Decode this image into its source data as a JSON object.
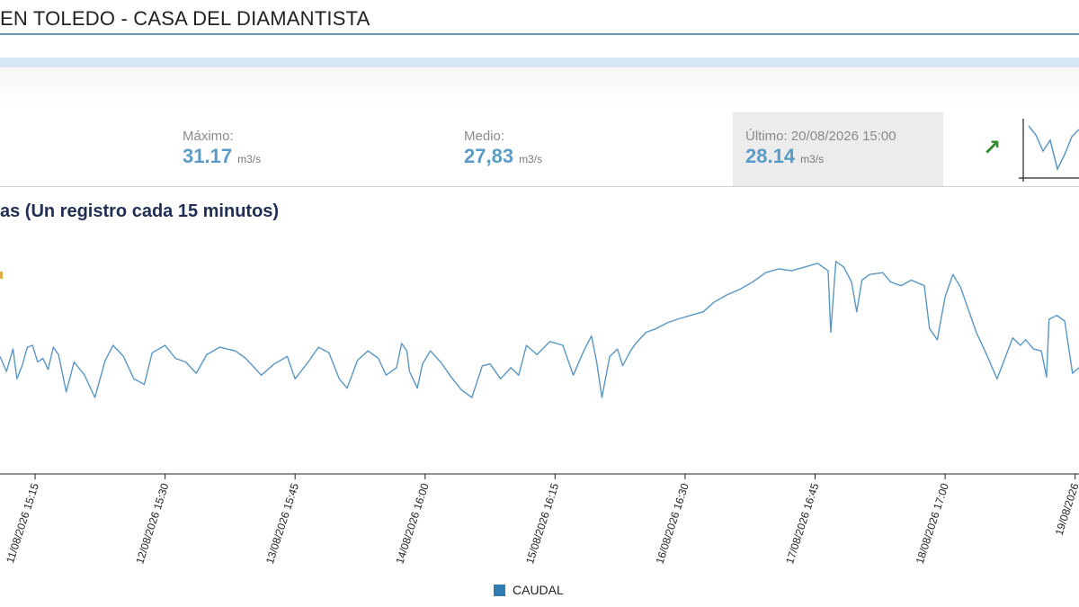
{
  "header": {
    "title": "EN TOLEDO - CASA DEL DIAMANTISTA"
  },
  "stats": {
    "max": {
      "label": "Máximo:",
      "value": "31.17",
      "unit": "m3/s"
    },
    "mean": {
      "label": "Medio:",
      "value": "27,83",
      "unit": "m3/s"
    },
    "last": {
      "label": "Último: 20/08/2026 15:00",
      "value": "28.14",
      "unit": "m3/s"
    },
    "trend_icon": "arrow-up-right-icon"
  },
  "colors": {
    "series": "#5b96c2",
    "value_text": "#5a9cc7",
    "legend": "#2f7cb0",
    "trend": "#2e8a2e"
  },
  "chart_data": {
    "type": "line",
    "title": "as (Un registro cada 15 minutos)",
    "xlabel": "",
    "ylabel": "",
    "x_tick_labels": [
      "11/08/2026 15:15",
      "12/08/2026 15:30",
      "13/08/2026 15:45",
      "14/08/2026 16:00",
      "15/08/2026 16:15",
      "16/08/2026 16:30",
      "17/08/2026 16:45",
      "18/08/2026 17:00",
      "19/08/2026"
    ],
    "x_tick_positions": [
      0,
      1,
      2,
      3,
      4,
      5,
      6,
      7,
      8
    ],
    "xlim": [
      -0.27,
      8.03
    ],
    "ylim": [
      25.4,
      31.6
    ],
    "grid": false,
    "legend": "bottom-center",
    "series": [
      {
        "name": "CAUDAL",
        "points": [
          [
            -0.27,
            28.55
          ],
          [
            -0.22,
            28.15
          ],
          [
            -0.17,
            28.75
          ],
          [
            -0.14,
            27.95
          ],
          [
            -0.1,
            28.3
          ],
          [
            -0.06,
            28.8
          ],
          [
            -0.02,
            28.85
          ],
          [
            0.02,
            28.4
          ],
          [
            0.06,
            28.5
          ],
          [
            0.1,
            28.2
          ],
          [
            0.14,
            28.8
          ],
          [
            0.18,
            28.6
          ],
          [
            0.24,
            27.6
          ],
          [
            0.3,
            28.4
          ],
          [
            0.38,
            28.05
          ],
          [
            0.46,
            27.45
          ],
          [
            0.54,
            28.45
          ],
          [
            0.6,
            28.85
          ],
          [
            0.68,
            28.55
          ],
          [
            0.76,
            27.95
          ],
          [
            0.84,
            27.8
          ],
          [
            0.9,
            28.65
          ],
          [
            1.0,
            28.85
          ],
          [
            1.08,
            28.5
          ],
          [
            1.16,
            28.4
          ],
          [
            1.24,
            28.1
          ],
          [
            1.32,
            28.6
          ],
          [
            1.42,
            28.8
          ],
          [
            1.54,
            28.7
          ],
          [
            1.62,
            28.5
          ],
          [
            1.74,
            28.05
          ],
          [
            1.84,
            28.35
          ],
          [
            1.94,
            28.55
          ],
          [
            2.0,
            27.95
          ],
          [
            2.1,
            28.4
          ],
          [
            2.18,
            28.8
          ],
          [
            2.26,
            28.65
          ],
          [
            2.34,
            27.95
          ],
          [
            2.4,
            27.7
          ],
          [
            2.48,
            28.45
          ],
          [
            2.56,
            28.7
          ],
          [
            2.64,
            28.5
          ],
          [
            2.7,
            28.05
          ],
          [
            2.78,
            28.25
          ],
          [
            2.82,
            28.9
          ],
          [
            2.86,
            28.7
          ],
          [
            2.88,
            28.15
          ],
          [
            2.94,
            27.7
          ],
          [
            2.98,
            28.35
          ],
          [
            3.04,
            28.7
          ],
          [
            3.12,
            28.4
          ],
          [
            3.2,
            28.0
          ],
          [
            3.28,
            27.65
          ],
          [
            3.36,
            27.45
          ],
          [
            3.44,
            28.3
          ],
          [
            3.5,
            28.35
          ],
          [
            3.58,
            27.95
          ],
          [
            3.66,
            28.25
          ],
          [
            3.72,
            28.05
          ],
          [
            3.78,
            28.85
          ],
          [
            3.86,
            28.6
          ],
          [
            3.96,
            28.95
          ],
          [
            4.06,
            28.85
          ],
          [
            4.14,
            28.05
          ],
          [
            4.22,
            28.7
          ],
          [
            4.28,
            29.1
          ],
          [
            4.32,
            28.4
          ],
          [
            4.36,
            27.45
          ],
          [
            4.42,
            28.55
          ],
          [
            4.48,
            28.75
          ],
          [
            4.52,
            28.3
          ],
          [
            4.58,
            28.7
          ],
          [
            4.62,
            28.9
          ],
          [
            4.7,
            29.2
          ],
          [
            4.78,
            29.3
          ],
          [
            4.86,
            29.45
          ],
          [
            4.94,
            29.55
          ],
          [
            5.04,
            29.65
          ],
          [
            5.14,
            29.75
          ],
          [
            5.22,
            30.0
          ],
          [
            5.32,
            30.2
          ],
          [
            5.42,
            30.35
          ],
          [
            5.52,
            30.55
          ],
          [
            5.62,
            30.8
          ],
          [
            5.72,
            30.9
          ],
          [
            5.82,
            30.85
          ],
          [
            5.92,
            30.95
          ],
          [
            6.02,
            31.05
          ],
          [
            6.1,
            30.85
          ],
          [
            6.12,
            29.2
          ],
          [
            6.16,
            31.1
          ],
          [
            6.22,
            30.95
          ],
          [
            6.28,
            30.55
          ],
          [
            6.32,
            29.75
          ],
          [
            6.36,
            30.6
          ],
          [
            6.42,
            30.75
          ],
          [
            6.52,
            30.8
          ],
          [
            6.58,
            30.55
          ],
          [
            6.66,
            30.45
          ],
          [
            6.74,
            30.6
          ],
          [
            6.84,
            30.45
          ],
          [
            6.88,
            29.3
          ],
          [
            6.94,
            29.0
          ],
          [
            7.0,
            30.15
          ],
          [
            7.06,
            30.75
          ],
          [
            7.12,
            30.4
          ],
          [
            7.18,
            29.8
          ],
          [
            7.24,
            29.2
          ],
          [
            7.32,
            28.6
          ],
          [
            7.4,
            27.95
          ],
          [
            7.46,
            28.5
          ],
          [
            7.52,
            29.05
          ],
          [
            7.58,
            28.85
          ],
          [
            7.62,
            29.0
          ],
          [
            7.68,
            28.75
          ],
          [
            7.74,
            28.7
          ],
          [
            7.78,
            28.0
          ],
          [
            7.8,
            29.55
          ],
          [
            7.86,
            29.65
          ],
          [
            7.92,
            29.5
          ],
          [
            7.98,
            28.1
          ],
          [
            8.03,
            28.25
          ]
        ]
      }
    ]
  },
  "legend": {
    "items": [
      {
        "label": "CAUDAL",
        "color": "#2f7cb0"
      }
    ]
  }
}
